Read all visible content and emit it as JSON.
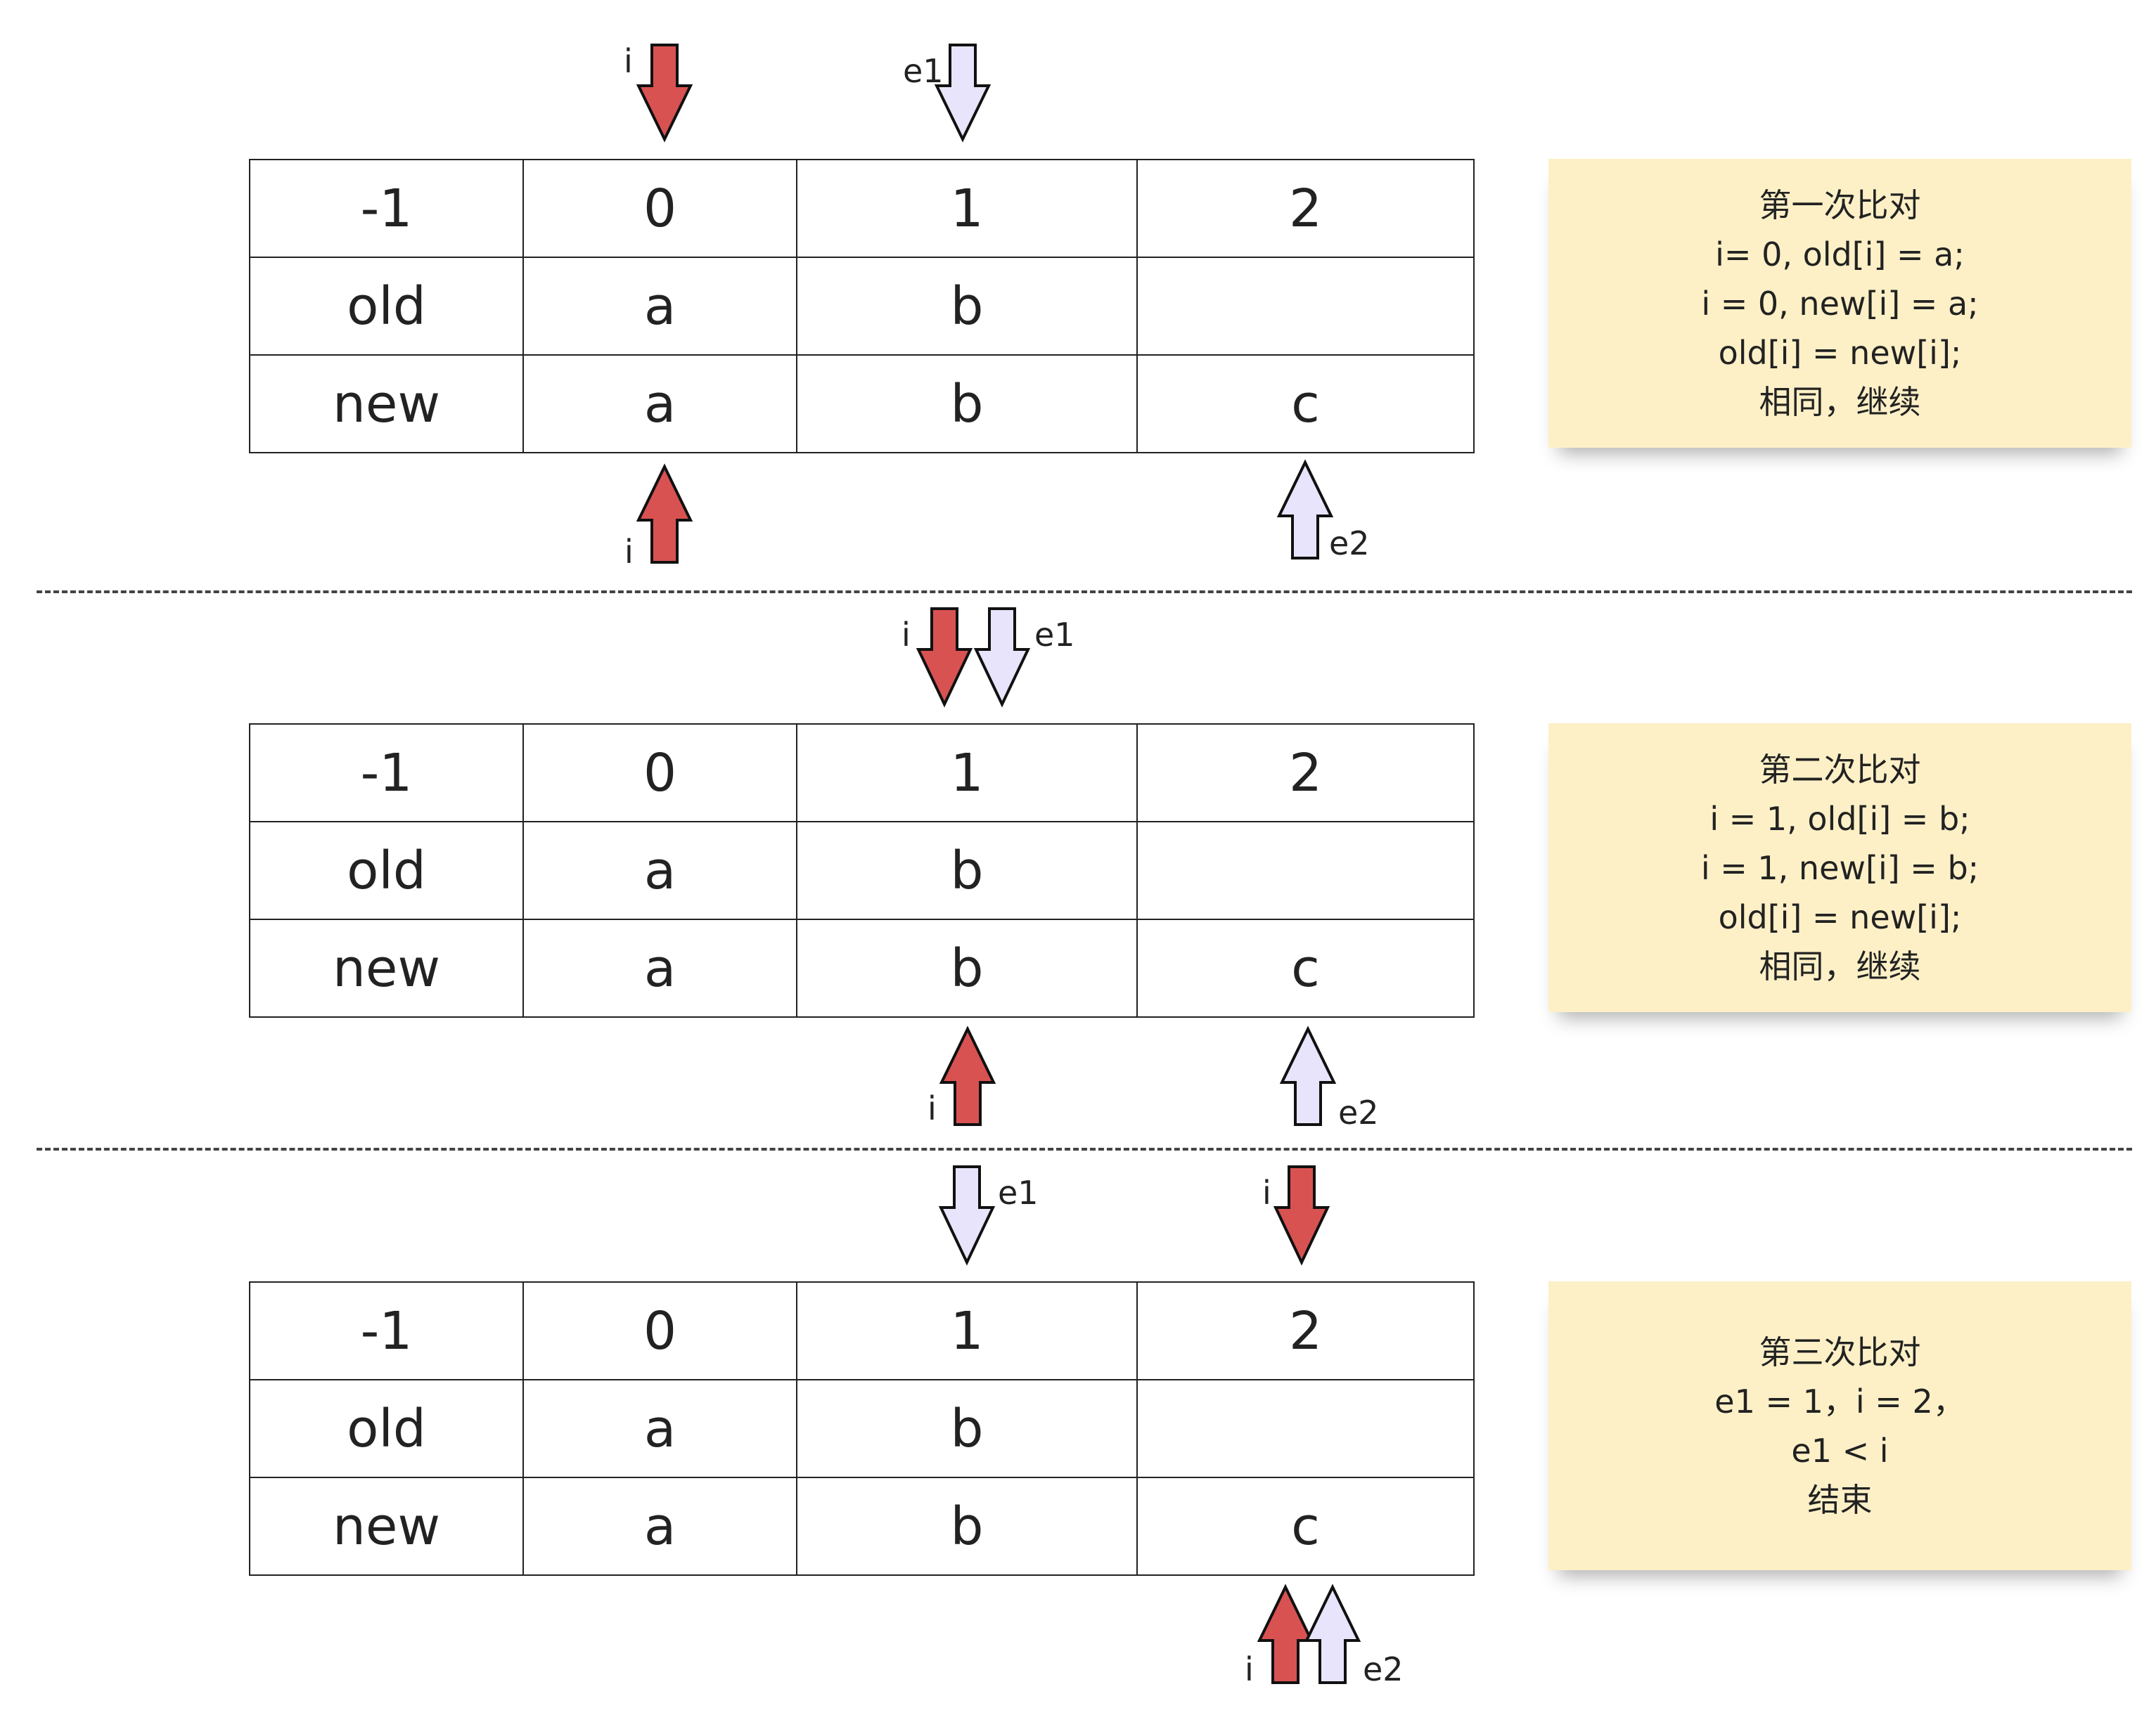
{
  "table": {
    "header": [
      "-1",
      "0",
      "1",
      "2"
    ],
    "rows": [
      [
        "old",
        "a",
        "b",
        ""
      ],
      [
        "new",
        "a",
        "b",
        "c"
      ]
    ]
  },
  "steps": [
    {
      "note": [
        "第一次比对",
        "i= 0, old[i] = a;",
        "i = 0, new[i] = a;",
        "old[i] = new[i];",
        "相同，继续"
      ],
      "top_pointers": [
        {
          "label": "i",
          "column": "0",
          "color": "red"
        },
        {
          "label": "e1",
          "column": "1",
          "color": "lavender"
        }
      ],
      "bottom_pointers": [
        {
          "label": "i",
          "column": "0",
          "color": "red"
        },
        {
          "label": "e2",
          "column": "2",
          "color": "lavender"
        }
      ]
    },
    {
      "note": [
        "第二次比对",
        "i = 1, old[i] = b;",
        "i = 1, new[i] = b;",
        "old[i] = new[i];",
        "相同，继续"
      ],
      "top_pointers": [
        {
          "label": "i",
          "column": "1",
          "color": "red"
        },
        {
          "label": "e1",
          "column": "1",
          "color": "lavender"
        }
      ],
      "bottom_pointers": [
        {
          "label": "i",
          "column": "1",
          "color": "red"
        },
        {
          "label": "e2",
          "column": "2",
          "color": "lavender"
        }
      ]
    },
    {
      "note": [
        "第三次比对",
        "e1 = 1，i = 2，",
        "e1 < i",
        "结束"
      ],
      "top_pointers": [
        {
          "label": "e1",
          "column": "1",
          "color": "lavender"
        },
        {
          "label": "i",
          "column": "2",
          "color": "red"
        }
      ],
      "bottom_pointers": [
        {
          "label": "i",
          "column": "2",
          "color": "red"
        },
        {
          "label": "e2",
          "column": "2",
          "color": "lavender"
        }
      ]
    }
  ],
  "colors": {
    "red": "#d95252",
    "lavender": "#e8e4fb",
    "note_bg": "#fdf0c7",
    "stroke": "#111111"
  }
}
